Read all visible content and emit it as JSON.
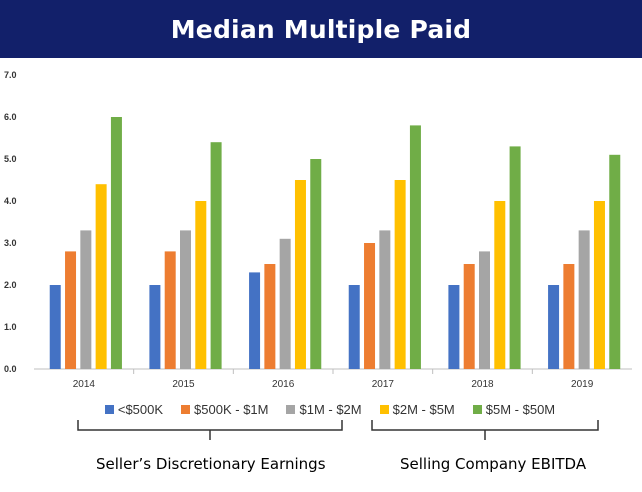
{
  "title": "Median Multiple Paid",
  "colors": {
    "title_bg": "#12206a",
    "series": [
      "#4472c4",
      "#ed7d31",
      "#a5a5a5",
      "#ffc000",
      "#70ad47"
    ]
  },
  "groups": {
    "left": "Seller’s Discretionary Earnings",
    "right": "Selling Company EBITDA"
  },
  "chart_data": {
    "type": "bar",
    "title": "Median Multiple Paid",
    "categories": [
      "2014",
      "2015",
      "2016",
      "2017",
      "2018",
      "2019"
    ],
    "ylim": [
      0,
      7
    ],
    "yticks": [
      "0.0",
      "1.0",
      "2.0",
      "3.0",
      "4.0",
      "5.0",
      "6.0",
      "7.0"
    ],
    "grid": false,
    "legend_position": "bottom",
    "series": [
      {
        "name": "<$500K",
        "values": [
          2.0,
          2.0,
          2.3,
          2.0,
          2.0,
          2.0
        ]
      },
      {
        "name": "$500K - $1M",
        "values": [
          2.8,
          2.8,
          2.5,
          3.0,
          2.5,
          2.5
        ]
      },
      {
        "name": "$1M - $2M",
        "values": [
          3.3,
          3.3,
          3.1,
          3.3,
          2.8,
          3.3
        ]
      },
      {
        "name": "$2M - $5M",
        "values": [
          4.4,
          4.0,
          4.5,
          4.5,
          4.0,
          4.0
        ]
      },
      {
        "name": "$5M - $50M",
        "values": [
          6.0,
          5.4,
          5.0,
          5.8,
          5.3,
          5.1
        ]
      }
    ]
  }
}
